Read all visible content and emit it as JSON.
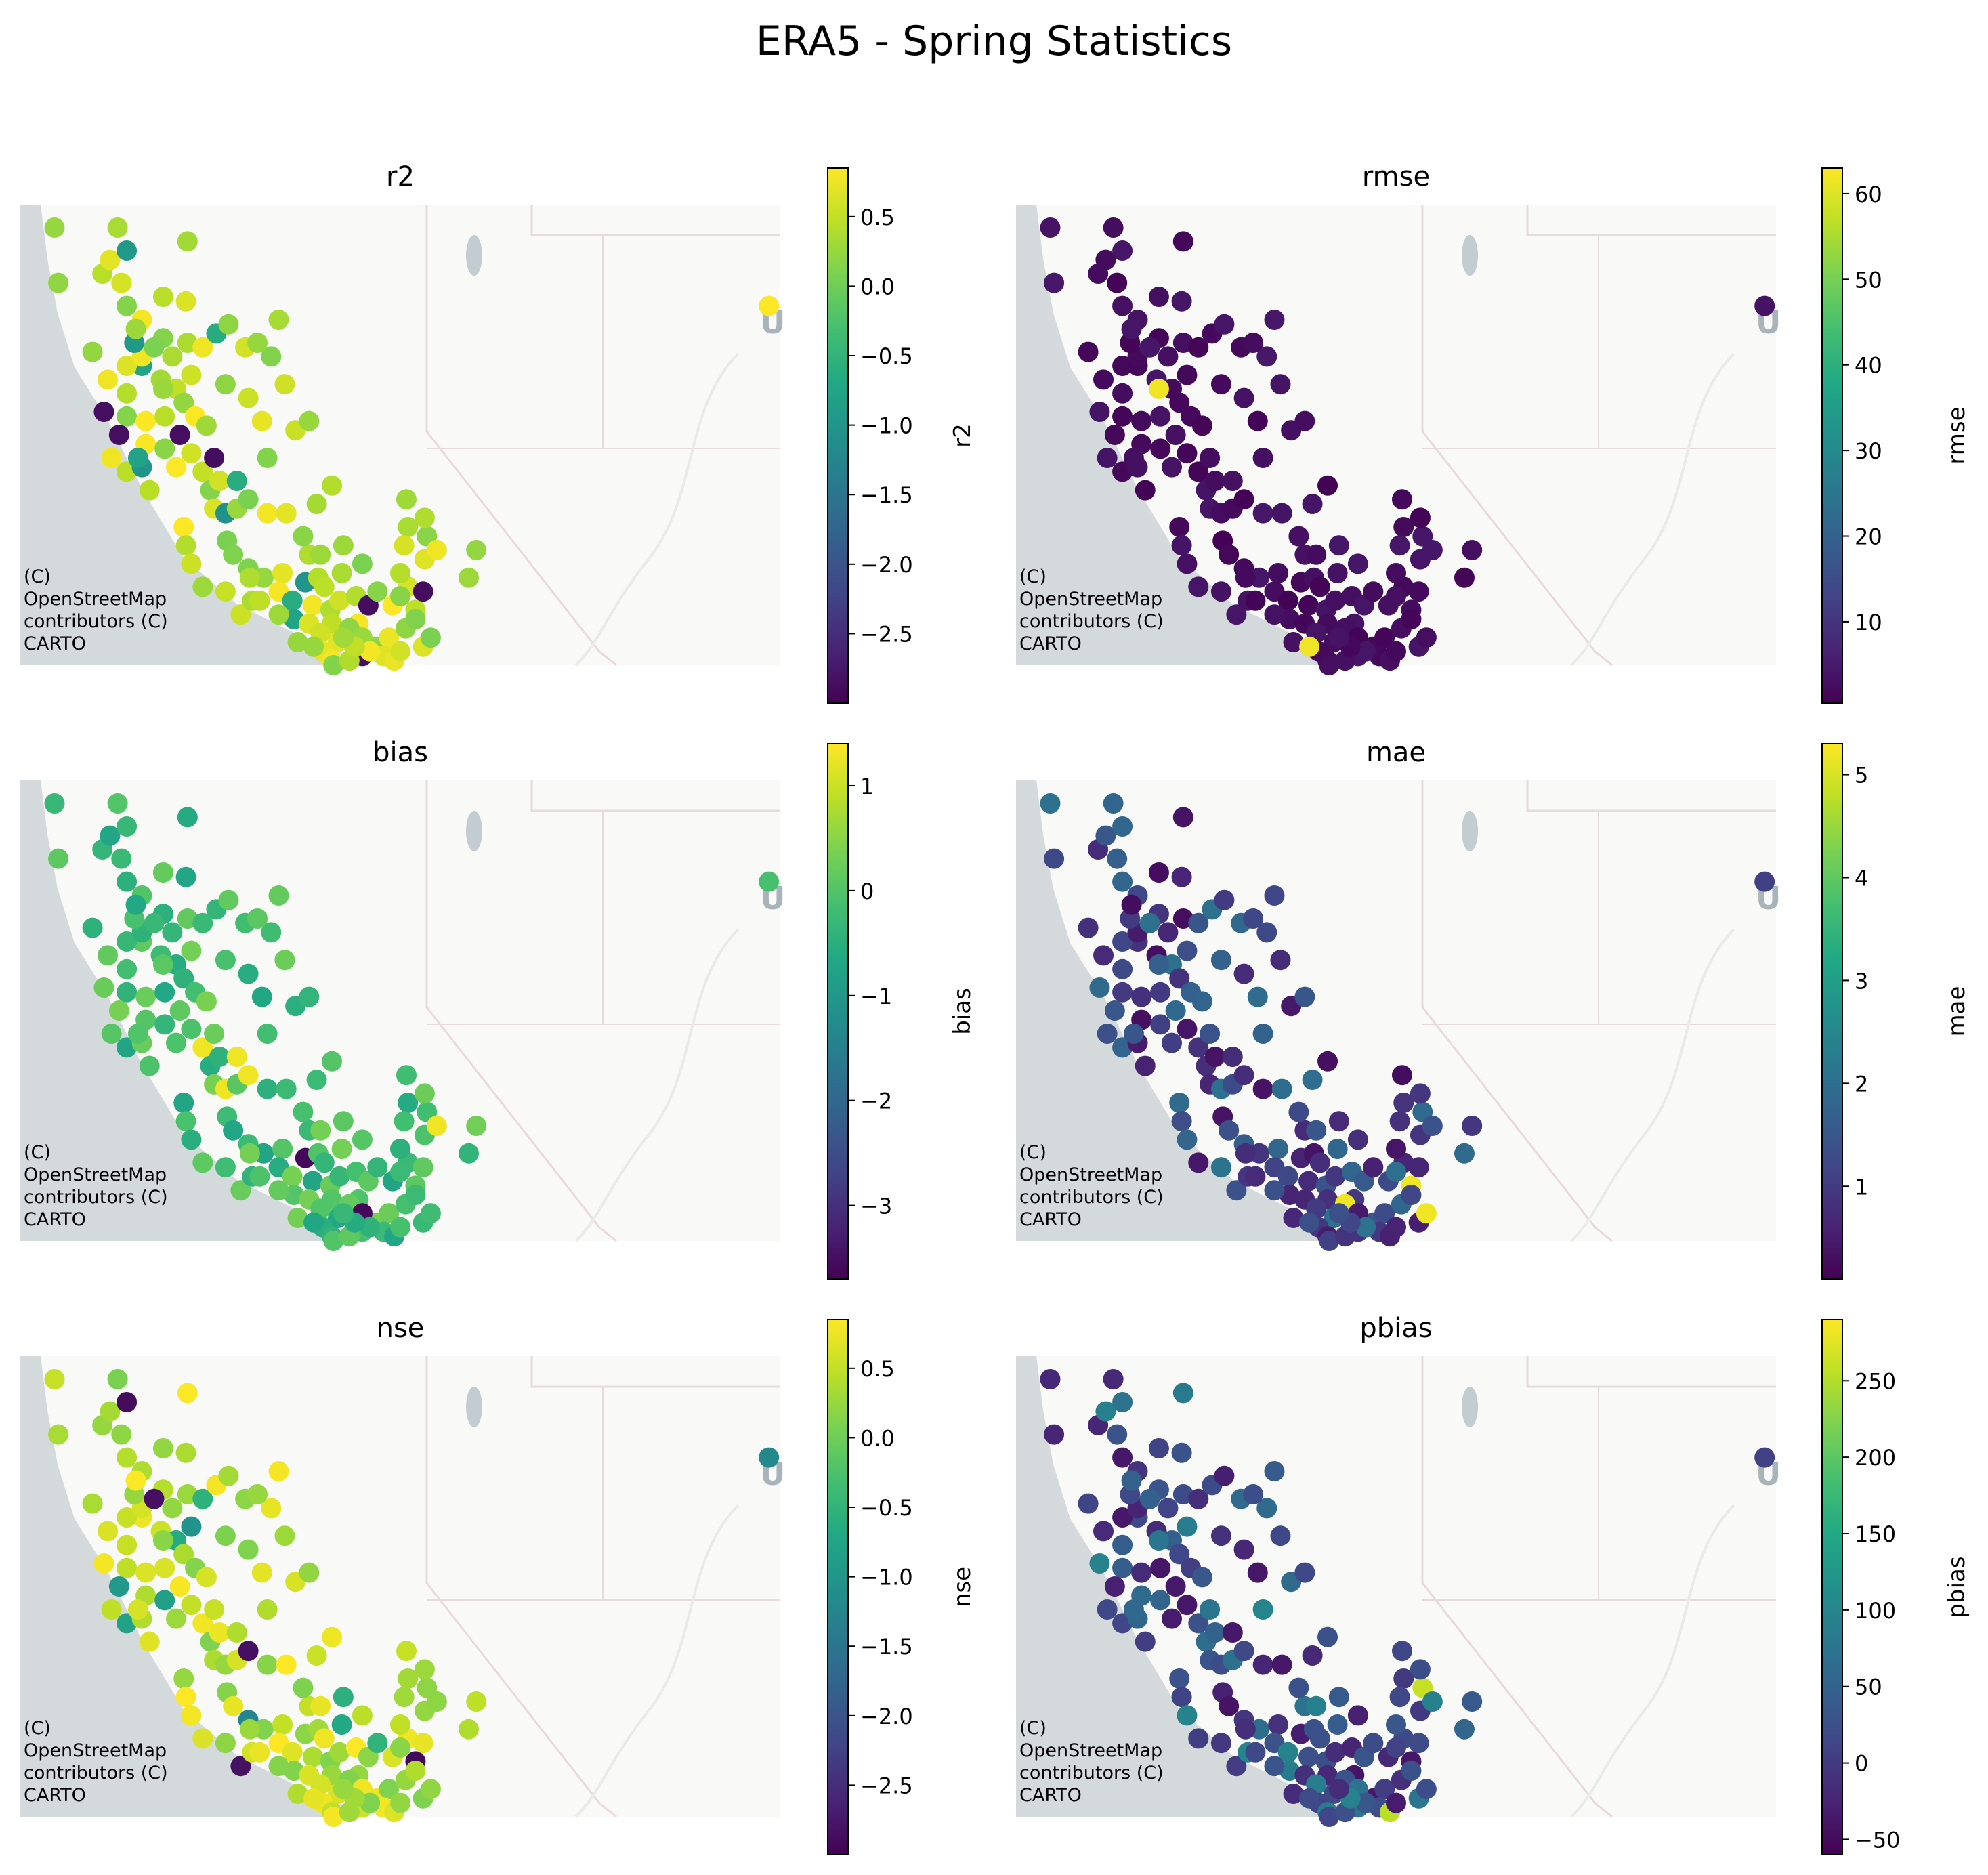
{
  "title": "ERA5 - Spring Statistics",
  "attribution": [
    "(C)",
    "OpenStreetMap",
    "contributors (C)",
    "CARTO"
  ],
  "basemap_label": "U",
  "colormap": "viridis",
  "colors": {
    "ocean": "#d4dadc",
    "land": "#f9f9f8",
    "border": "#e8d9dc",
    "lake": "#c3ccd1",
    "viridis": [
      "#440154",
      "#482475",
      "#414487",
      "#355f8d",
      "#2a788e",
      "#21918c",
      "#22a884",
      "#44bf70",
      "#7ad151",
      "#bddf26",
      "#fde725"
    ]
  },
  "chart_data": [
    {
      "type": "scatter",
      "title": "r2",
      "colorbar_label": "r2",
      "vmin": -3.0,
      "vmax": 0.85,
      "ticks": [
        0.5,
        0.0,
        -0.5,
        -1.0,
        -1.5,
        -2.0,
        -2.5
      ],
      "tick_labels": [
        "0.5",
        "0.0",
        "−0.5",
        "−1.0",
        "−1.5",
        "−2.0",
        "−2.5"
      ]
    },
    {
      "type": "scatter",
      "title": "rmse",
      "colorbar_label": "rmse",
      "vmin": 0.5,
      "vmax": 63,
      "ticks": [
        60,
        50,
        40,
        30,
        20,
        10
      ],
      "tick_labels": [
        "60",
        "50",
        "40",
        "30",
        "20",
        "10"
      ]
    },
    {
      "type": "scatter",
      "title": "bias",
      "colorbar_label": "bias",
      "vmin": -3.7,
      "vmax": 1.4,
      "ticks": [
        1,
        0,
        -1,
        -2,
        -3
      ],
      "tick_labels": [
        "1",
        "0",
        "−1",
        "−2",
        "−3"
      ]
    },
    {
      "type": "scatter",
      "title": "mae",
      "colorbar_label": "mae",
      "vmin": 0.1,
      "vmax": 5.3,
      "ticks": [
        5,
        4,
        3,
        2,
        1
      ],
      "tick_labels": [
        "5",
        "4",
        "3",
        "2",
        "1"
      ]
    },
    {
      "type": "scatter",
      "title": "nse",
      "colorbar_label": "nse",
      "vmin": -3.0,
      "vmax": 0.85,
      "ticks": [
        0.5,
        0.0,
        -0.5,
        -1.0,
        -1.5,
        -2.0,
        -2.5
      ],
      "tick_labels": [
        "0.5",
        "0.0",
        "−0.5",
        "−1.0",
        "−1.5",
        "−2.0",
        "−2.5"
      ]
    },
    {
      "type": "scatter",
      "title": "pbias",
      "colorbar_label": "pbias",
      "vmin": -60,
      "vmax": 290,
      "ticks": [
        250,
        200,
        150,
        100,
        50,
        0,
        -50
      ],
      "tick_labels": [
        "250",
        "200",
        "150",
        "100",
        "50",
        "0",
        "−50"
      ]
    }
  ]
}
